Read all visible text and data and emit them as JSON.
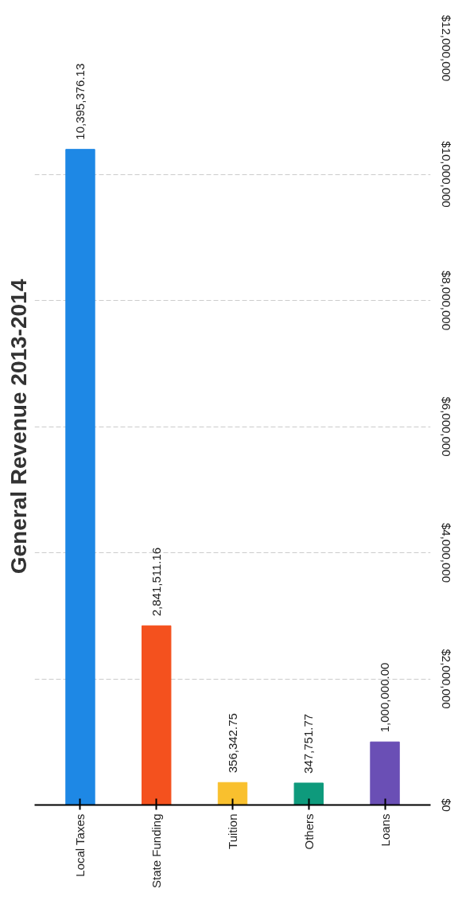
{
  "chart_data": {
    "type": "bar",
    "title": "General Revenue 2013-2014",
    "categories": [
      "Local Taxes",
      "State Funding",
      "Tuition",
      "Others",
      "Loans"
    ],
    "values": [
      10395376.13,
      2841511.16,
      356342.75,
      347751.77,
      1000000.0
    ],
    "colors": [
      "#1e88e5",
      "#f4511e",
      "#f9c02e",
      "#0e9a7c",
      "#6a4fb5"
    ],
    "ylim": [
      0,
      12000000
    ],
    "yticks": [
      {
        "value": 0,
        "label": "$0"
      },
      {
        "value": 2000000,
        "label": "$2,000,000"
      },
      {
        "value": 4000000,
        "label": "$4,000,000"
      },
      {
        "value": 6000000,
        "label": "$6,000,000"
      },
      {
        "value": 8000000,
        "label": "$8,000,000"
      },
      {
        "value": 10000000,
        "label": "$10,000,000"
      },
      {
        "value": 12000000,
        "label": "$12,000,000"
      }
    ],
    "value_labels": [
      "10,395,376.13",
      "2,841,511.16",
      "356,342.75",
      "347,751.77",
      "1,000,000.00"
    ],
    "grid": "y"
  }
}
